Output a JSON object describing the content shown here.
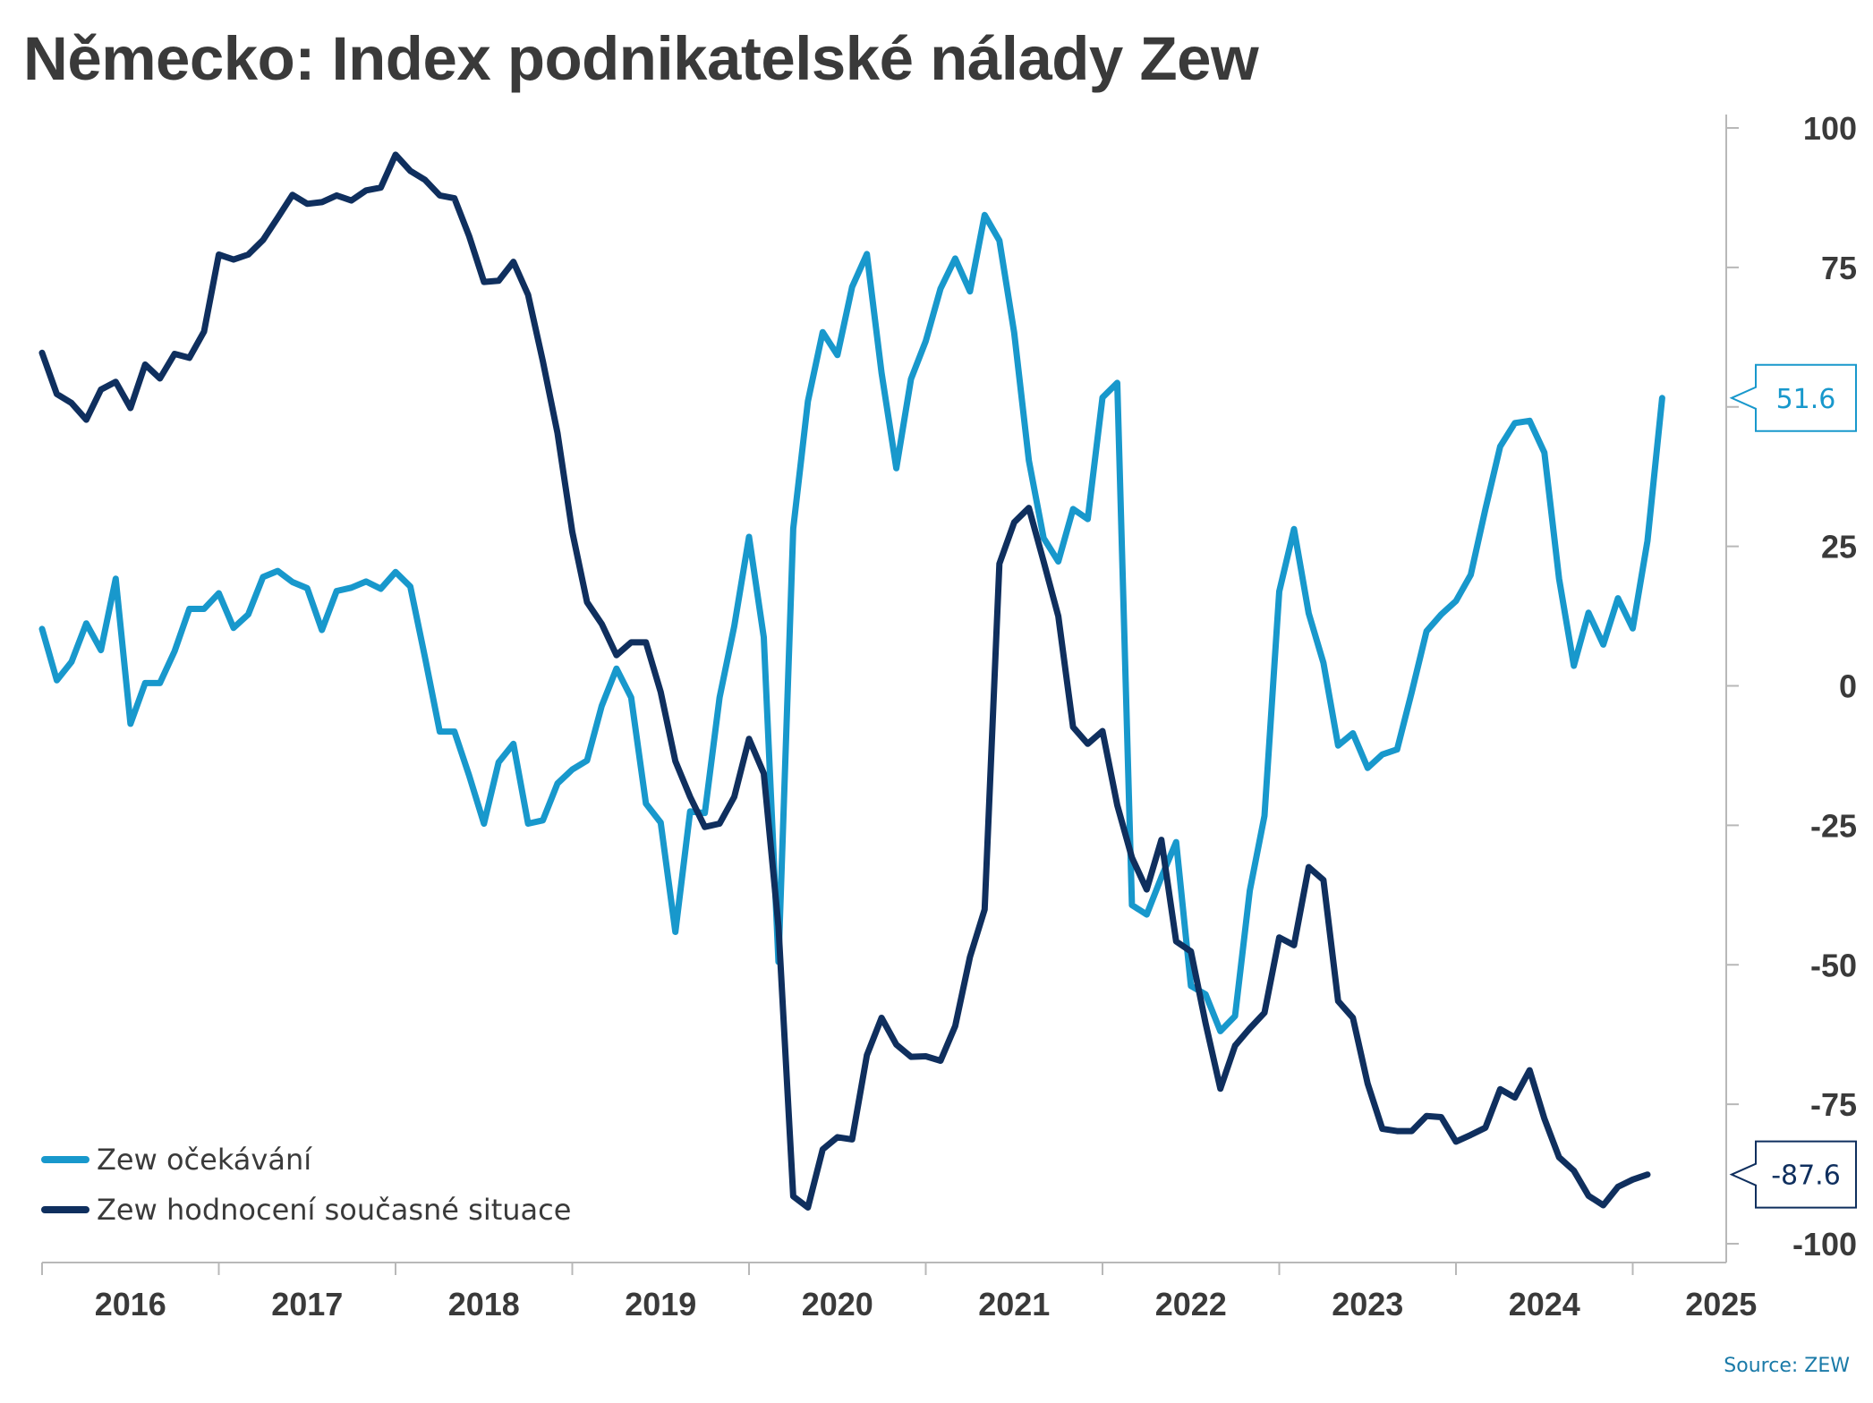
{
  "chart_data": {
    "type": "line",
    "title": "Německo: Index podnikatelské nálady Zew",
    "source": "Source: ZEW",
    "ylim": [
      -100,
      100
    ],
    "yticks": [
      100,
      75,
      50,
      25,
      0,
      -25,
      -50,
      -75,
      -100
    ],
    "ytick_labels": [
      "100",
      "75",
      "",
      "25",
      "0",
      "-25",
      "-50",
      "-75",
      "-100"
    ],
    "xticks": [
      "2016",
      "2017",
      "2018",
      "2019",
      "2020",
      "2021",
      "2022",
      "2023",
      "2024",
      "2025"
    ],
    "xlim": [
      "2016-01",
      "2025-04"
    ],
    "legend_position": "bottom-left",
    "colors": {
      "expectations": "#1898cc",
      "current": "#0f2f5e",
      "axis": "#b8b8b8",
      "text": "#3a3a3a"
    },
    "series": [
      {
        "name": "Zew očekávání",
        "color": "#1898cc",
        "start": "2016-01",
        "last_label": "51.6",
        "values": [
          10.2,
          1.0,
          4.3,
          11.2,
          6.4,
          19.2,
          -6.8,
          0.5,
          0.5,
          6.2,
          13.8,
          13.8,
          16.6,
          10.4,
          12.8,
          19.5,
          20.6,
          18.6,
          17.5,
          10.0,
          17.0,
          17.6,
          18.7,
          17.4,
          20.4,
          17.8,
          5.1,
          -8.2,
          -8.2,
          -16.1,
          -24.7,
          -13.7,
          -10.4,
          -24.7,
          -24.1,
          -17.5,
          -15.0,
          -13.4,
          -3.6,
          3.1,
          -2.1,
          -21.1,
          -24.5,
          -44.1,
          -22.5,
          -22.8,
          -2.1,
          10.7,
          26.7,
          8.7,
          -49.5,
          28.2,
          51.0,
          63.4,
          59.3,
          71.5,
          77.4,
          56.1,
          39.0,
          55.0,
          61.8,
          71.2,
          76.6,
          70.7,
          84.4,
          79.8,
          63.3,
          40.4,
          26.5,
          22.3,
          31.7,
          29.9,
          51.7,
          54.3,
          -39.3,
          -41.0,
          -34.3,
          -28.0,
          -53.8,
          -55.3,
          -61.9,
          -59.2,
          -36.7,
          -23.3,
          16.9,
          28.1,
          13.0,
          4.1,
          -10.7,
          -8.5,
          -14.7,
          -12.3,
          -11.4,
          -1.1,
          9.8,
          12.8,
          15.2,
          19.9,
          31.7,
          42.9,
          47.1,
          47.5,
          41.8,
          19.2,
          3.6,
          13.1,
          7.4,
          15.7,
          10.3,
          26.0,
          51.6
        ]
      },
      {
        "name": "Zew hodnocení současné situace",
        "color": "#0f2f5e",
        "start": "2016-01",
        "last_label": "-87.6",
        "values": [
          59.7,
          52.3,
          50.7,
          47.7,
          53.1,
          54.5,
          49.8,
          57.6,
          55.1,
          59.5,
          58.8,
          63.5,
          77.3,
          76.4,
          77.3,
          79.9,
          83.9,
          88.0,
          86.4,
          86.7,
          87.9,
          87.0,
          88.8,
          89.3,
          95.2,
          92.3,
          90.7,
          87.9,
          87.4,
          80.6,
          72.4,
          72.6,
          76.0,
          70.1,
          58.2,
          45.3,
          27.6,
          15.0,
          11.1,
          5.5,
          7.8,
          7.8,
          -1.1,
          -13.5,
          -19.9,
          -25.3,
          -24.7,
          -19.9,
          -9.5,
          -15.7,
          -43.1,
          -91.5,
          -93.5,
          -83.1,
          -80.9,
          -81.3,
          -66.2,
          -59.5,
          -64.3,
          -66.5,
          -66.4,
          -67.2,
          -61.0,
          -48.6,
          -40.1,
          21.9,
          29.3,
          31.9,
          22.3,
          12.5,
          -7.4,
          -10.4,
          -8.1,
          -21.4,
          -30.8,
          -36.5,
          -27.6,
          -45.8,
          -47.6,
          -60.5,
          -72.2,
          -64.5,
          -61.4,
          -58.6,
          -45.1,
          -46.5,
          -32.5,
          -34.8,
          -56.5,
          -59.5,
          -71.3,
          -79.4,
          -79.8,
          -79.8,
          -77.1,
          -77.3,
          -81.7,
          -80.5,
          -79.2,
          -72.3,
          -73.8,
          -68.9,
          -77.6,
          -84.5,
          -86.9,
          -91.4,
          -93.1,
          -89.8,
          -88.5,
          -87.6
        ]
      }
    ]
  }
}
